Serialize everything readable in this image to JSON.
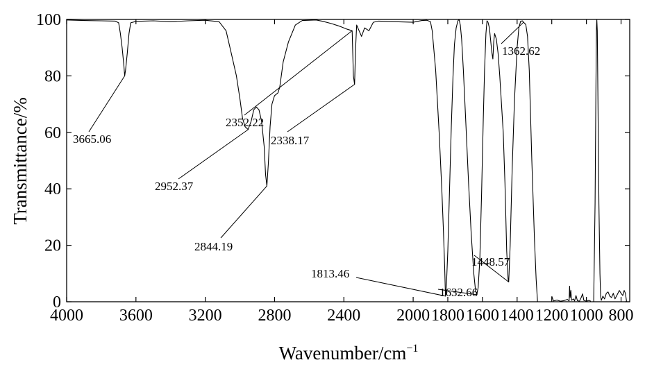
{
  "chart_data": {
    "type": "line",
    "title": "",
    "xlabel": "Wavenumber/cm",
    "xlabel_superscript": "−1",
    "ylabel": "Transmittance/%",
    "xlim": [
      4000,
      750
    ],
    "ylim": [
      0,
      100
    ],
    "x_reversed": true,
    "grid": false,
    "x_ticks": [
      4000,
      3600,
      3200,
      2800,
      2400,
      2000,
      1800,
      1600,
      1400,
      1200,
      1000,
      800
    ],
    "y_ticks": [
      0,
      20,
      40,
      60,
      80,
      100
    ],
    "series": [
      {
        "color": "#000000",
        "points": [
          [
            4000,
            99.8
          ],
          [
            3900,
            99.6
          ],
          [
            3800,
            99.5
          ],
          [
            3720,
            99.4
          ],
          [
            3700,
            98.8
          ],
          [
            3690,
            95
          ],
          [
            3680,
            90
          ],
          [
            3670,
            84
          ],
          [
            3665.06,
            80
          ],
          [
            3660,
            82
          ],
          [
            3650,
            88
          ],
          [
            3640,
            95
          ],
          [
            3630,
            98.8
          ],
          [
            3600,
            99.3
          ],
          [
            3500,
            99.5
          ],
          [
            3400,
            99.2
          ],
          [
            3300,
            99.5
          ],
          [
            3200,
            99.7
          ],
          [
            3120,
            99.2
          ],
          [
            3080,
            96
          ],
          [
            3050,
            88
          ],
          [
            3020,
            80
          ],
          [
            3000,
            72
          ],
          [
            2985,
            65
          ],
          [
            2970,
            62
          ],
          [
            2952.37,
            61
          ],
          [
            2935,
            64
          ],
          [
            2920,
            68
          ],
          [
            2905,
            69
          ],
          [
            2890,
            68
          ],
          [
            2875,
            64
          ],
          [
            2860,
            55
          ],
          [
            2852,
            45
          ],
          [
            2844.19,
            41
          ],
          [
            2836,
            49
          ],
          [
            2826,
            62
          ],
          [
            2815,
            70
          ],
          [
            2800,
            73
          ],
          [
            2780,
            74
          ],
          [
            2770,
            76
          ],
          [
            2750,
            85
          ],
          [
            2720,
            92
          ],
          [
            2680,
            98
          ],
          [
            2640,
            99.6
          ],
          [
            2560,
            99.8
          ],
          [
            2520,
            99.3
          ],
          [
            2470,
            98.5
          ],
          [
            2420,
            97.5
          ],
          [
            2380,
            96.5
          ],
          [
            2352.22,
            96
          ],
          [
            2345,
            80
          ],
          [
            2338.17,
            77
          ],
          [
            2332,
            90
          ],
          [
            2326,
            98
          ],
          [
            2312,
            96
          ],
          [
            2298,
            94
          ],
          [
            2280,
            97
          ],
          [
            2255,
            96
          ],
          [
            2230,
            99
          ],
          [
            2200,
            99.4
          ],
          [
            2100,
            99.2
          ],
          [
            2000,
            99.0
          ],
          [
            1950,
            99.6
          ],
          [
            1920,
            99.7
          ],
          [
            1900,
            99.2
          ],
          [
            1890,
            96
          ],
          [
            1870,
            82
          ],
          [
            1850,
            60
          ],
          [
            1835,
            40
          ],
          [
            1825,
            25
          ],
          [
            1818,
            12
          ],
          [
            1813.46,
            2
          ],
          [
            1808,
            6
          ],
          [
            1800,
            18
          ],
          [
            1790,
            40
          ],
          [
            1780,
            62
          ],
          [
            1770,
            80
          ],
          [
            1762,
            91
          ],
          [
            1752,
            97
          ],
          [
            1742,
            99.5
          ],
          [
            1735,
            100
          ],
          [
            1728,
            98
          ],
          [
            1720,
            93
          ],
          [
            1710,
            82
          ],
          [
            1695,
            62
          ],
          [
            1680,
            42
          ],
          [
            1665,
            24
          ],
          [
            1650,
            10
          ],
          [
            1640,
            4
          ],
          [
            1632.66,
            2.5
          ],
          [
            1625,
            5
          ],
          [
            1615,
            15
          ],
          [
            1605,
            38
          ],
          [
            1595,
            65
          ],
          [
            1588,
            82
          ],
          [
            1580,
            95
          ],
          [
            1574,
            99.5
          ],
          [
            1568,
            99
          ],
          [
            1560,
            97
          ],
          [
            1552,
            92
          ],
          [
            1545,
            88
          ],
          [
            1540,
            86
          ],
          [
            1535,
            92
          ],
          [
            1530,
            95
          ],
          [
            1520,
            93
          ],
          [
            1510,
            88
          ],
          [
            1500,
            80
          ],
          [
            1490,
            70
          ],
          [
            1480,
            60
          ],
          [
            1470,
            42
          ],
          [
            1460,
            18
          ],
          [
            1452,
            8
          ],
          [
            1448.57,
            7
          ],
          [
            1440,
            20
          ],
          [
            1428,
            48
          ],
          [
            1415,
            72
          ],
          [
            1400,
            90
          ],
          [
            1390,
            97
          ],
          [
            1380,
            99.3
          ],
          [
            1370,
            99.5
          ],
          [
            1362.62,
            99
          ],
          [
            1350,
            98.2
          ],
          [
            1340,
            94
          ],
          [
            1330,
            82
          ],
          [
            1315,
            50
          ],
          [
            1300,
            22
          ],
          [
            1290,
            8
          ],
          [
            1282,
            0
          ]
        ]
      },
      {
        "color": "#000000",
        "points": [
          [
            1200,
            2
          ],
          [
            1190,
            0.3
          ],
          [
            1170,
            0.6
          ],
          [
            1150,
            0.2
          ],
          [
            1130,
            0.4
          ],
          [
            1110,
            0.8
          ],
          [
            1100,
            0.3
          ],
          [
            1097,
            5.5
          ],
          [
            1094,
            1.5
          ],
          [
            1090,
            4
          ],
          [
            1086,
            0.5
          ],
          [
            1075,
            1
          ],
          [
            1068,
            0.3
          ],
          [
            1060,
            2.2
          ],
          [
            1052,
            0.4
          ],
          [
            1040,
            0.2
          ],
          [
            1030,
            1.5
          ],
          [
            1022,
            2.8
          ],
          [
            1015,
            0.5
          ],
          [
            1000,
            0.2
          ],
          [
            985,
            0.5
          ],
          [
            975,
            0.2
          ]
        ]
      },
      {
        "color": "#000000",
        "points": [
          [
            958,
            0
          ],
          [
            950,
            35
          ],
          [
            945,
            75
          ],
          [
            942,
            97
          ],
          [
            940,
            100
          ],
          [
            937,
            96
          ],
          [
            933,
            70
          ],
          [
            928,
            35
          ],
          [
            922,
            10
          ],
          [
            918,
            2
          ],
          [
            914,
            0.5
          ],
          [
            905,
            2
          ],
          [
            895,
            1
          ],
          [
            885,
            3
          ],
          [
            875,
            3.5
          ],
          [
            865,
            2
          ],
          [
            855,
            1.5
          ],
          [
            845,
            3
          ],
          [
            835,
            1
          ],
          [
            822,
            2.5
          ],
          [
            810,
            4
          ],
          [
            800,
            3
          ],
          [
            790,
            2.2
          ],
          [
            782,
            4
          ],
          [
            775,
            3
          ],
          [
            768,
            0
          ]
        ]
      }
    ],
    "annotations": [
      {
        "text": "3665.06",
        "x": 3665.06,
        "y": 80
      },
      {
        "text": "2952.37",
        "x": 2952.37,
        "y": 61
      },
      {
        "text": "2844.19",
        "x": 2844.19,
        "y": 41
      },
      {
        "text": "2352.22",
        "x": 2352.22,
        "y": 96
      },
      {
        "text": "2338.17",
        "x": 2338.17,
        "y": 77
      },
      {
        "text": "1813.46",
        "x": 1813.46,
        "y": 2
      },
      {
        "text": "1632.66",
        "x": 1632.66,
        "y": 2.5
      },
      {
        "text": "1448.57",
        "x": 1448.57,
        "y": 7
      },
      {
        "text": "1362.62",
        "x": 1362.62,
        "y": 99
      }
    ]
  }
}
